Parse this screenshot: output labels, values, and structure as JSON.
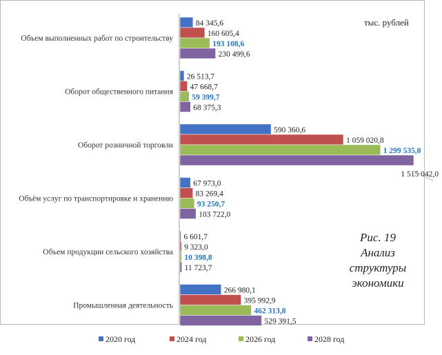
{
  "chart_data": {
    "type": "bar",
    "orientation": "horizontal",
    "unit": "тыс. рублей",
    "categories": [
      "Объем выполненных работ по строительству",
      "Оборот общественного питания",
      "Оборот розничной торговли",
      "Объём услуг по транспортировке и хранению",
      "Объем продукции сельского хозяйства",
      "Промышленная деятельность"
    ],
    "series": [
      {
        "name": "2020 год",
        "color": "#4472c4",
        "values": [
          84345.6,
          26513.7,
          590360.6,
          67973.0,
          6601.7,
          266980.1
        ],
        "labels": [
          "84 345,6",
          "26 513,7",
          "590 360,6",
          "67 973,0",
          "6 601,7",
          "266 980,1"
        ]
      },
      {
        "name": "2024 год",
        "color": "#c0504d",
        "values": [
          160605.4,
          47668.7,
          1059020.8,
          83269.4,
          9323.0,
          395992.9
        ],
        "labels": [
          "160 605,4",
          "47 668,7",
          "1 059 020,8",
          "83 269,4",
          "9 323,0",
          "395 992,9"
        ]
      },
      {
        "name": "2026 год",
        "color": "#9bbb59",
        "highlight_labels": true,
        "values": [
          193108.6,
          59399.7,
          1299535.0,
          93250.7,
          10398.8,
          462313.8
        ],
        "labels": [
          "193 108,6",
          "59 399,7",
          "1 299 535,0",
          "93 250,7",
          "10 398,8",
          "462 313,8"
        ]
      },
      {
        "name": "2028 год",
        "color": "#8064a2",
        "values": [
          230499.6,
          68375.3,
          1515042.0,
          103722.0,
          11723.7,
          529391.5
        ],
        "labels": [
          "230 499,6",
          "68 375,3",
          "1 515 042,0",
          "103 722,0",
          "11 723,7",
          "529 391,5"
        ]
      }
    ],
    "xlim": [
      0,
      1515042
    ],
    "grid": false,
    "legend_position": "bottom"
  },
  "caption": {
    "lines": [
      "Рис. 19",
      "Анализ",
      "структуры",
      "экономики"
    ]
  }
}
